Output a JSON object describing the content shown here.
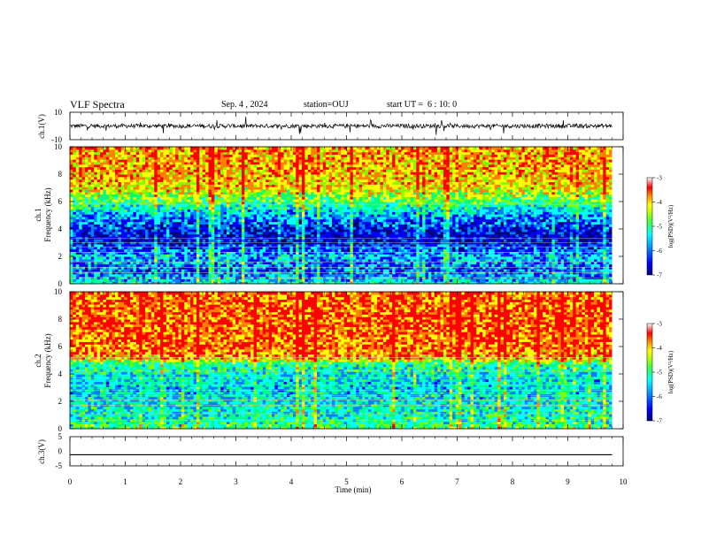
{
  "header": {
    "title": "VLF Spectra",
    "date": "Sep. 4 , 2024",
    "station": "station=OUJ",
    "start_ut": "start UT =  6 : 10: 0"
  },
  "colorbar": {
    "label": "log(PSD)(V²/Hz)",
    "ticks": [
      "-3",
      "-4",
      "-5",
      "-6",
      "-7"
    ],
    "range": [
      -7,
      -3
    ],
    "colormap": [
      "#000080",
      "#0000ff",
      "#0080ff",
      "#00ffff",
      "#00ff80",
      "#80ff00",
      "#ffff00",
      "#ff8000",
      "#ff0000",
      "#ffffff"
    ]
  },
  "chart_data": [
    {
      "type": "line",
      "panel": "ch1-waveform",
      "ylabel": "ch.1(V)",
      "ylim": [
        -10,
        10
      ],
      "yticks": [
        "10",
        "-10"
      ],
      "x_range_min": [
        0,
        9.8
      ],
      "baseline": 0,
      "noise_amplitude": 1.5,
      "color": "#000000"
    },
    {
      "type": "heatmap",
      "panel": "ch1-spectrogram",
      "ylabel": "ch.1\nFrequency (kHz)",
      "yticks": [
        "0",
        "2",
        "4",
        "6",
        "8",
        "10"
      ],
      "ylim": [
        0,
        10
      ],
      "x_range_min": [
        0,
        9.8
      ],
      "profile_khz": [
        0,
        0.5,
        1,
        2,
        3,
        3.5,
        4,
        5,
        6,
        7,
        8,
        10
      ],
      "profile_log_psd": [
        -5.2,
        -5.8,
        -6.0,
        -5.7,
        -6.4,
        -6.5,
        -6.3,
        -5.8,
        -4.9,
        -4.1,
        -3.9,
        -3.8
      ],
      "lines_khz": [
        0.4,
        0.8,
        1.2,
        1.6,
        2.0,
        2.3,
        2.7,
        3.0,
        3.3,
        5.8
      ]
    },
    {
      "type": "heatmap",
      "panel": "ch2-spectrogram",
      "ylabel": "ch.2\nFrequency (kHz)",
      "yticks": [
        "0",
        "2",
        "4",
        "6",
        "8",
        "10"
      ],
      "ylim": [
        0,
        10
      ],
      "x_range_min": [
        0,
        9.8
      ],
      "profile_khz": [
        0,
        1,
        2,
        3,
        4,
        4.8,
        5.2,
        6,
        8,
        10
      ],
      "profile_log_psd": [
        -4.9,
        -5.3,
        -5.4,
        -5.5,
        -5.4,
        -5.0,
        -3.8,
        -3.6,
        -3.5,
        -3.6
      ],
      "lines_khz": [
        0.6,
        1.1,
        1.7,
        2.1,
        2.4,
        2.8,
        3.2,
        3.7,
        4.2,
        5.2
      ]
    },
    {
      "type": "line",
      "panel": "ch3-waveform",
      "ylabel": "ch.3(V)",
      "ylim": [
        -5,
        5
      ],
      "yticks": [
        "5",
        "0",
        "-5"
      ],
      "x_range_min": [
        0,
        9.8
      ],
      "values": [
        -1.2,
        -1.2
      ],
      "color": "#000000"
    }
  ],
  "time_axis": {
    "xlabel": "Time (min)",
    "ticks": [
      "0",
      "1",
      "2",
      "3",
      "4",
      "5",
      "6",
      "7",
      "8",
      "9",
      "10"
    ],
    "xlim": [
      0,
      10
    ]
  }
}
